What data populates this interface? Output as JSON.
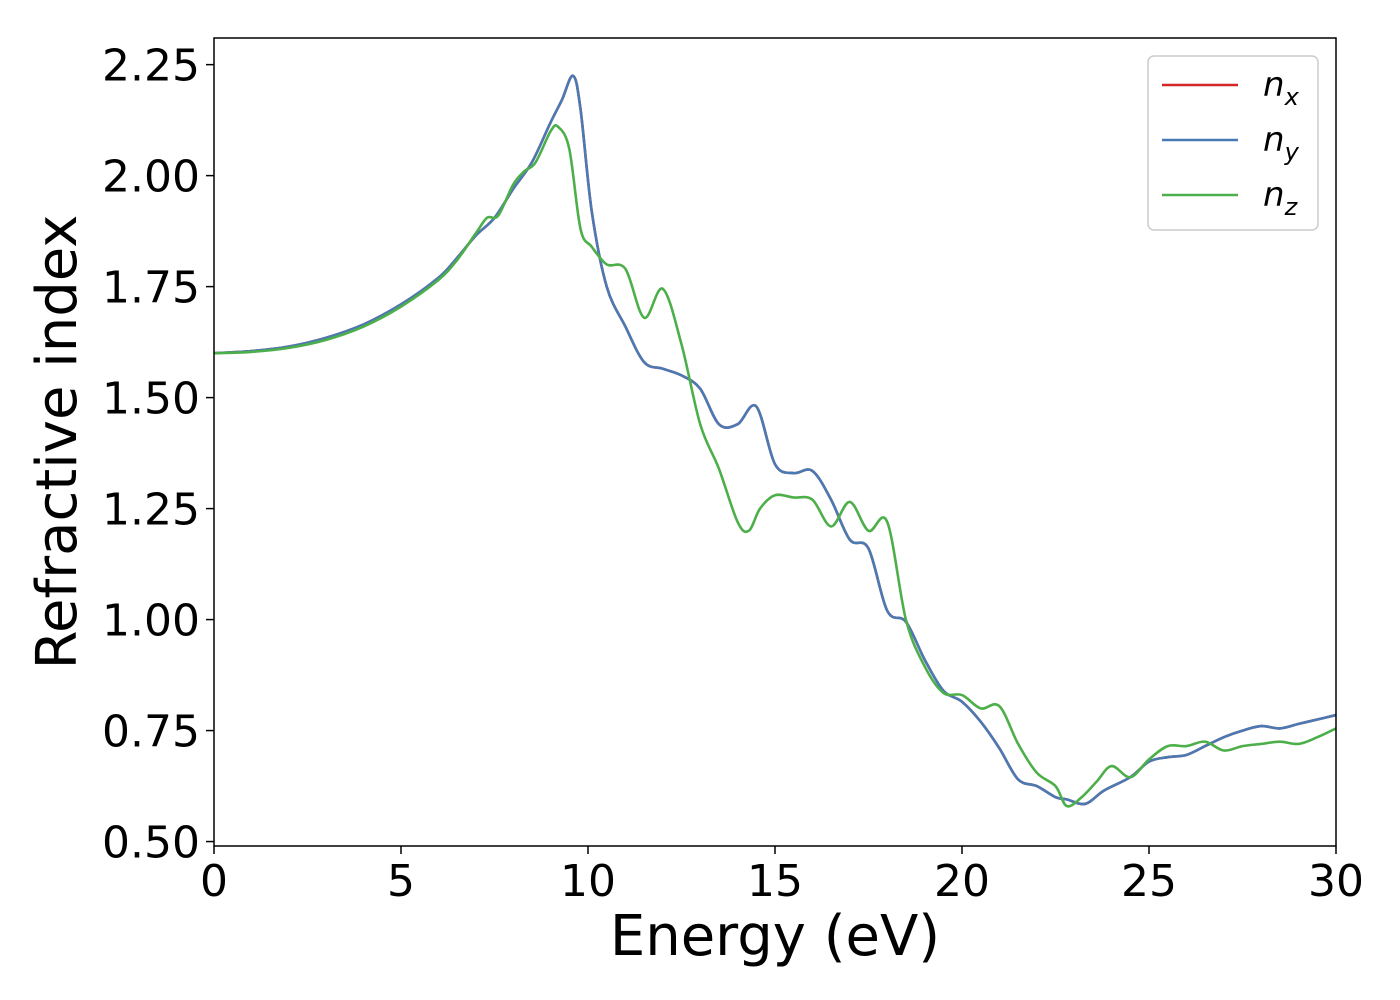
{
  "chart_data": {
    "type": "line",
    "title": "",
    "xlabel": "Energy (eV)",
    "ylabel": "Refractive index",
    "xlim": [
      0,
      30
    ],
    "ylim": [
      0.49,
      2.31
    ],
    "xticks": [
      0,
      5,
      10,
      15,
      20,
      25,
      30
    ],
    "xtick_labels": [
      "0",
      "5",
      "10",
      "15",
      "20",
      "25",
      "30"
    ],
    "yticks": [
      0.5,
      0.75,
      1.0,
      1.25,
      1.5,
      1.75,
      2.0,
      2.25
    ],
    "ytick_labels": [
      "0.50",
      "0.75",
      "1.00",
      "1.25",
      "1.50",
      "1.75",
      "2.00",
      "2.25"
    ],
    "grid": false,
    "legend_position": "top-right",
    "series": [
      {
        "name": "n_x",
        "legend_base": "n",
        "legend_sub": "x",
        "color": "#d62728",
        "x": [
          0,
          1,
          2,
          3,
          4,
          5,
          6,
          6.5,
          7,
          7.5,
          8,
          8.5,
          9,
          9.3,
          9.6,
          9.8,
          10.1,
          10.5,
          11,
          11.5,
          12,
          12.5,
          13,
          13.5,
          14,
          14.5,
          15,
          15.5,
          16,
          16.5,
          17,
          17.5,
          18,
          18.5,
          19,
          19.5,
          20,
          20.5,
          21,
          21.5,
          22,
          22.5,
          22.8,
          23.3,
          23.8,
          24.5,
          25,
          25.5,
          26,
          26.5,
          27,
          27.5,
          28,
          28.5,
          29,
          29.5,
          30
        ],
        "y": [
          1.6,
          1.605,
          1.615,
          1.635,
          1.665,
          1.71,
          1.77,
          1.815,
          1.865,
          1.905,
          1.97,
          2.03,
          2.12,
          2.17,
          2.225,
          2.15,
          1.92,
          1.75,
          1.66,
          1.58,
          1.565,
          1.55,
          1.52,
          1.44,
          1.44,
          1.48,
          1.35,
          1.33,
          1.335,
          1.27,
          1.18,
          1.16,
          1.02,
          0.995,
          0.91,
          0.84,
          0.815,
          0.77,
          0.71,
          0.64,
          0.625,
          0.6,
          0.595,
          0.585,
          0.615,
          0.645,
          0.68,
          0.69,
          0.695,
          0.715,
          0.735,
          0.75,
          0.76,
          0.755,
          0.765,
          0.775,
          0.785
        ]
      },
      {
        "name": "n_y",
        "legend_base": "n",
        "legend_sub": "y",
        "color": "#4a7ab4",
        "x": [
          0,
          1,
          2,
          3,
          4,
          5,
          6,
          6.5,
          7,
          7.5,
          8,
          8.5,
          9,
          9.3,
          9.6,
          9.8,
          10.1,
          10.5,
          11,
          11.5,
          12,
          12.5,
          13,
          13.5,
          14,
          14.5,
          15,
          15.5,
          16,
          16.5,
          17,
          17.5,
          18,
          18.5,
          19,
          19.5,
          20,
          20.5,
          21,
          21.5,
          22,
          22.5,
          22.8,
          23.3,
          23.8,
          24.5,
          25,
          25.5,
          26,
          26.5,
          27,
          27.5,
          28,
          28.5,
          29,
          29.5,
          30
        ],
        "y": [
          1.6,
          1.605,
          1.615,
          1.635,
          1.665,
          1.71,
          1.77,
          1.815,
          1.865,
          1.905,
          1.97,
          2.03,
          2.12,
          2.17,
          2.225,
          2.15,
          1.92,
          1.75,
          1.66,
          1.58,
          1.565,
          1.55,
          1.52,
          1.44,
          1.44,
          1.48,
          1.35,
          1.33,
          1.335,
          1.27,
          1.18,
          1.16,
          1.02,
          0.995,
          0.91,
          0.84,
          0.815,
          0.77,
          0.71,
          0.64,
          0.625,
          0.6,
          0.595,
          0.585,
          0.615,
          0.645,
          0.68,
          0.69,
          0.695,
          0.715,
          0.735,
          0.75,
          0.76,
          0.755,
          0.765,
          0.775,
          0.785
        ]
      },
      {
        "name": "n_z",
        "legend_base": "n",
        "legend_sub": "z",
        "color": "#4daf4a",
        "x": [
          0,
          1,
          2,
          3,
          4,
          5,
          6,
          6.5,
          7,
          7.3,
          7.6,
          8,
          8.3,
          8.6,
          9,
          9.2,
          9.5,
          9.8,
          10.1,
          10.5,
          11,
          11.5,
          12,
          12.5,
          13,
          13.5,
          14,
          14.3,
          14.6,
          15,
          15.5,
          16,
          16.5,
          17,
          17.5,
          18,
          18.5,
          19,
          19.5,
          20,
          20.5,
          21,
          21.5,
          22,
          22.5,
          22.8,
          23.2,
          23.6,
          24,
          24.5,
          25,
          25.5,
          26,
          26.5,
          27,
          27.5,
          28,
          28.5,
          29,
          29.5,
          30
        ],
        "y": [
          1.6,
          1.603,
          1.612,
          1.63,
          1.66,
          1.705,
          1.765,
          1.81,
          1.87,
          1.905,
          1.91,
          1.98,
          2.01,
          2.03,
          2.1,
          2.11,
          2.06,
          1.88,
          1.84,
          1.8,
          1.79,
          1.68,
          1.745,
          1.62,
          1.44,
          1.34,
          1.22,
          1.2,
          1.25,
          1.28,
          1.275,
          1.27,
          1.21,
          1.265,
          1.2,
          1.22,
          1.0,
          0.895,
          0.835,
          0.83,
          0.8,
          0.805,
          0.72,
          0.655,
          0.625,
          0.58,
          0.6,
          0.635,
          0.67,
          0.645,
          0.685,
          0.715,
          0.715,
          0.725,
          0.705,
          0.715,
          0.72,
          0.725,
          0.72,
          0.735,
          0.755
        ]
      }
    ]
  }
}
